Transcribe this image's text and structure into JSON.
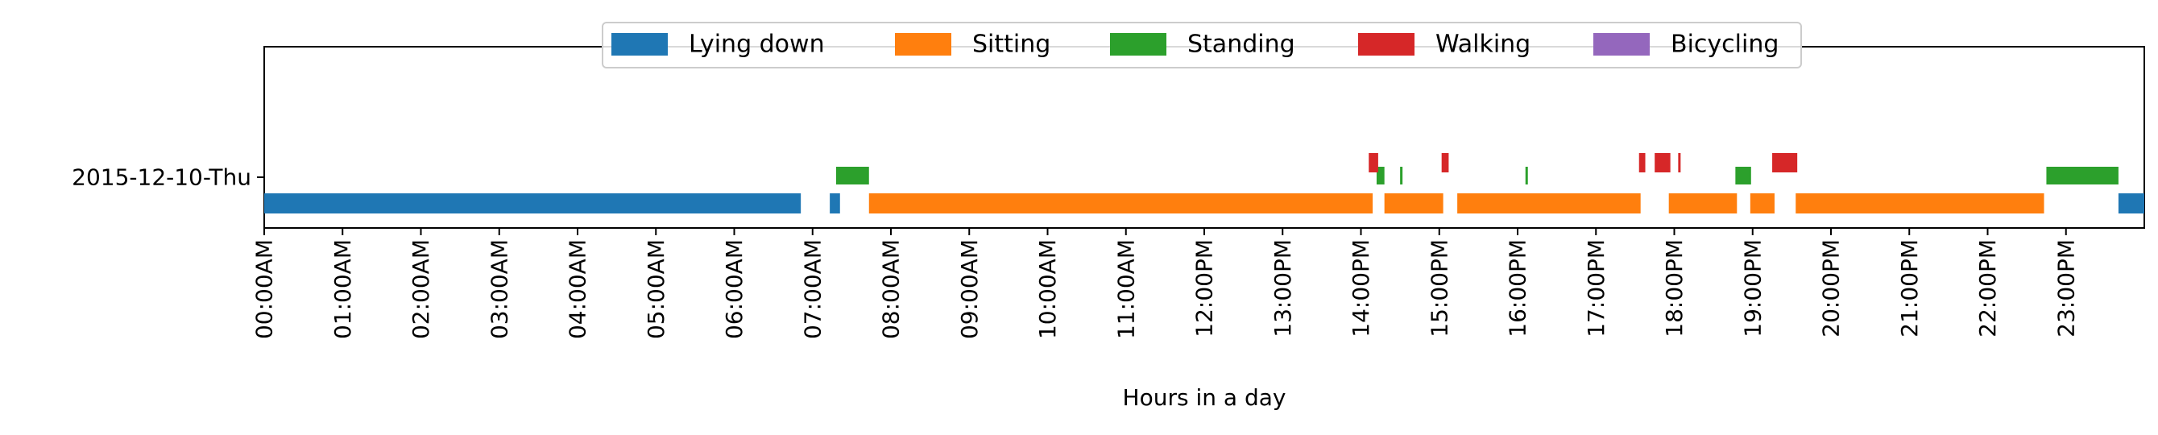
{
  "chart_data": {
    "type": "timeline",
    "xlabel": "Hours in a day",
    "ylabel": "",
    "xlim": [
      0,
      24
    ],
    "y_categories": [
      "2015-12-10-Thu"
    ],
    "x_ticks": [
      {
        "value": 0,
        "label": "00:00AM"
      },
      {
        "value": 1,
        "label": "01:00AM"
      },
      {
        "value": 2,
        "label": "02:00AM"
      },
      {
        "value": 3,
        "label": "03:00AM"
      },
      {
        "value": 4,
        "label": "04:00AM"
      },
      {
        "value": 5,
        "label": "05:00AM"
      },
      {
        "value": 6,
        "label": "06:00AM"
      },
      {
        "value": 7,
        "label": "07:00AM"
      },
      {
        "value": 8,
        "label": "08:00AM"
      },
      {
        "value": 9,
        "label": "09:00AM"
      },
      {
        "value": 10,
        "label": "10:00AM"
      },
      {
        "value": 11,
        "label": "11:00AM"
      },
      {
        "value": 12,
        "label": "12:00PM"
      },
      {
        "value": 13,
        "label": "13:00PM"
      },
      {
        "value": 14,
        "label": "14:00PM"
      },
      {
        "value": 15,
        "label": "15:00PM"
      },
      {
        "value": 16,
        "label": "16:00PM"
      },
      {
        "value": 17,
        "label": "17:00PM"
      },
      {
        "value": 18,
        "label": "18:00PM"
      },
      {
        "value": 19,
        "label": "19:00PM"
      },
      {
        "value": 20,
        "label": "20:00PM"
      },
      {
        "value": 21,
        "label": "21:00PM"
      },
      {
        "value": 22,
        "label": "22:00PM"
      },
      {
        "value": 23,
        "label": "23:00PM"
      }
    ],
    "legend_position": "top-center",
    "series": [
      {
        "name": "Lying down",
        "color": "#1f77b4",
        "level": 0,
        "intervals": [
          [
            0.0,
            6.85
          ],
          [
            7.22,
            7.35
          ],
          [
            23.67,
            24.0
          ]
        ]
      },
      {
        "name": "Sitting",
        "color": "#ff7f0e",
        "level": 0,
        "intervals": [
          [
            7.72,
            14.15
          ],
          [
            14.3,
            15.05
          ],
          [
            15.23,
            17.57
          ],
          [
            17.93,
            18.8
          ],
          [
            18.97,
            19.28
          ],
          [
            19.55,
            22.72
          ]
        ]
      },
      {
        "name": "Standing",
        "color": "#2ca02c",
        "level": 1,
        "intervals": [
          [
            7.3,
            7.72
          ],
          [
            14.2,
            14.3
          ],
          [
            14.5,
            14.53
          ],
          [
            16.1,
            16.13
          ],
          [
            18.78,
            18.98
          ],
          [
            22.75,
            23.67
          ]
        ]
      },
      {
        "name": "Walking",
        "color": "#d62728",
        "level": 2,
        "intervals": [
          [
            14.1,
            14.22
          ],
          [
            15.03,
            15.12
          ],
          [
            17.55,
            17.63
          ],
          [
            17.75,
            17.95
          ],
          [
            18.05,
            18.08
          ],
          [
            19.25,
            19.57
          ]
        ]
      },
      {
        "name": "Bicycling",
        "color": "#9467bd",
        "level": 3,
        "intervals": []
      }
    ]
  }
}
